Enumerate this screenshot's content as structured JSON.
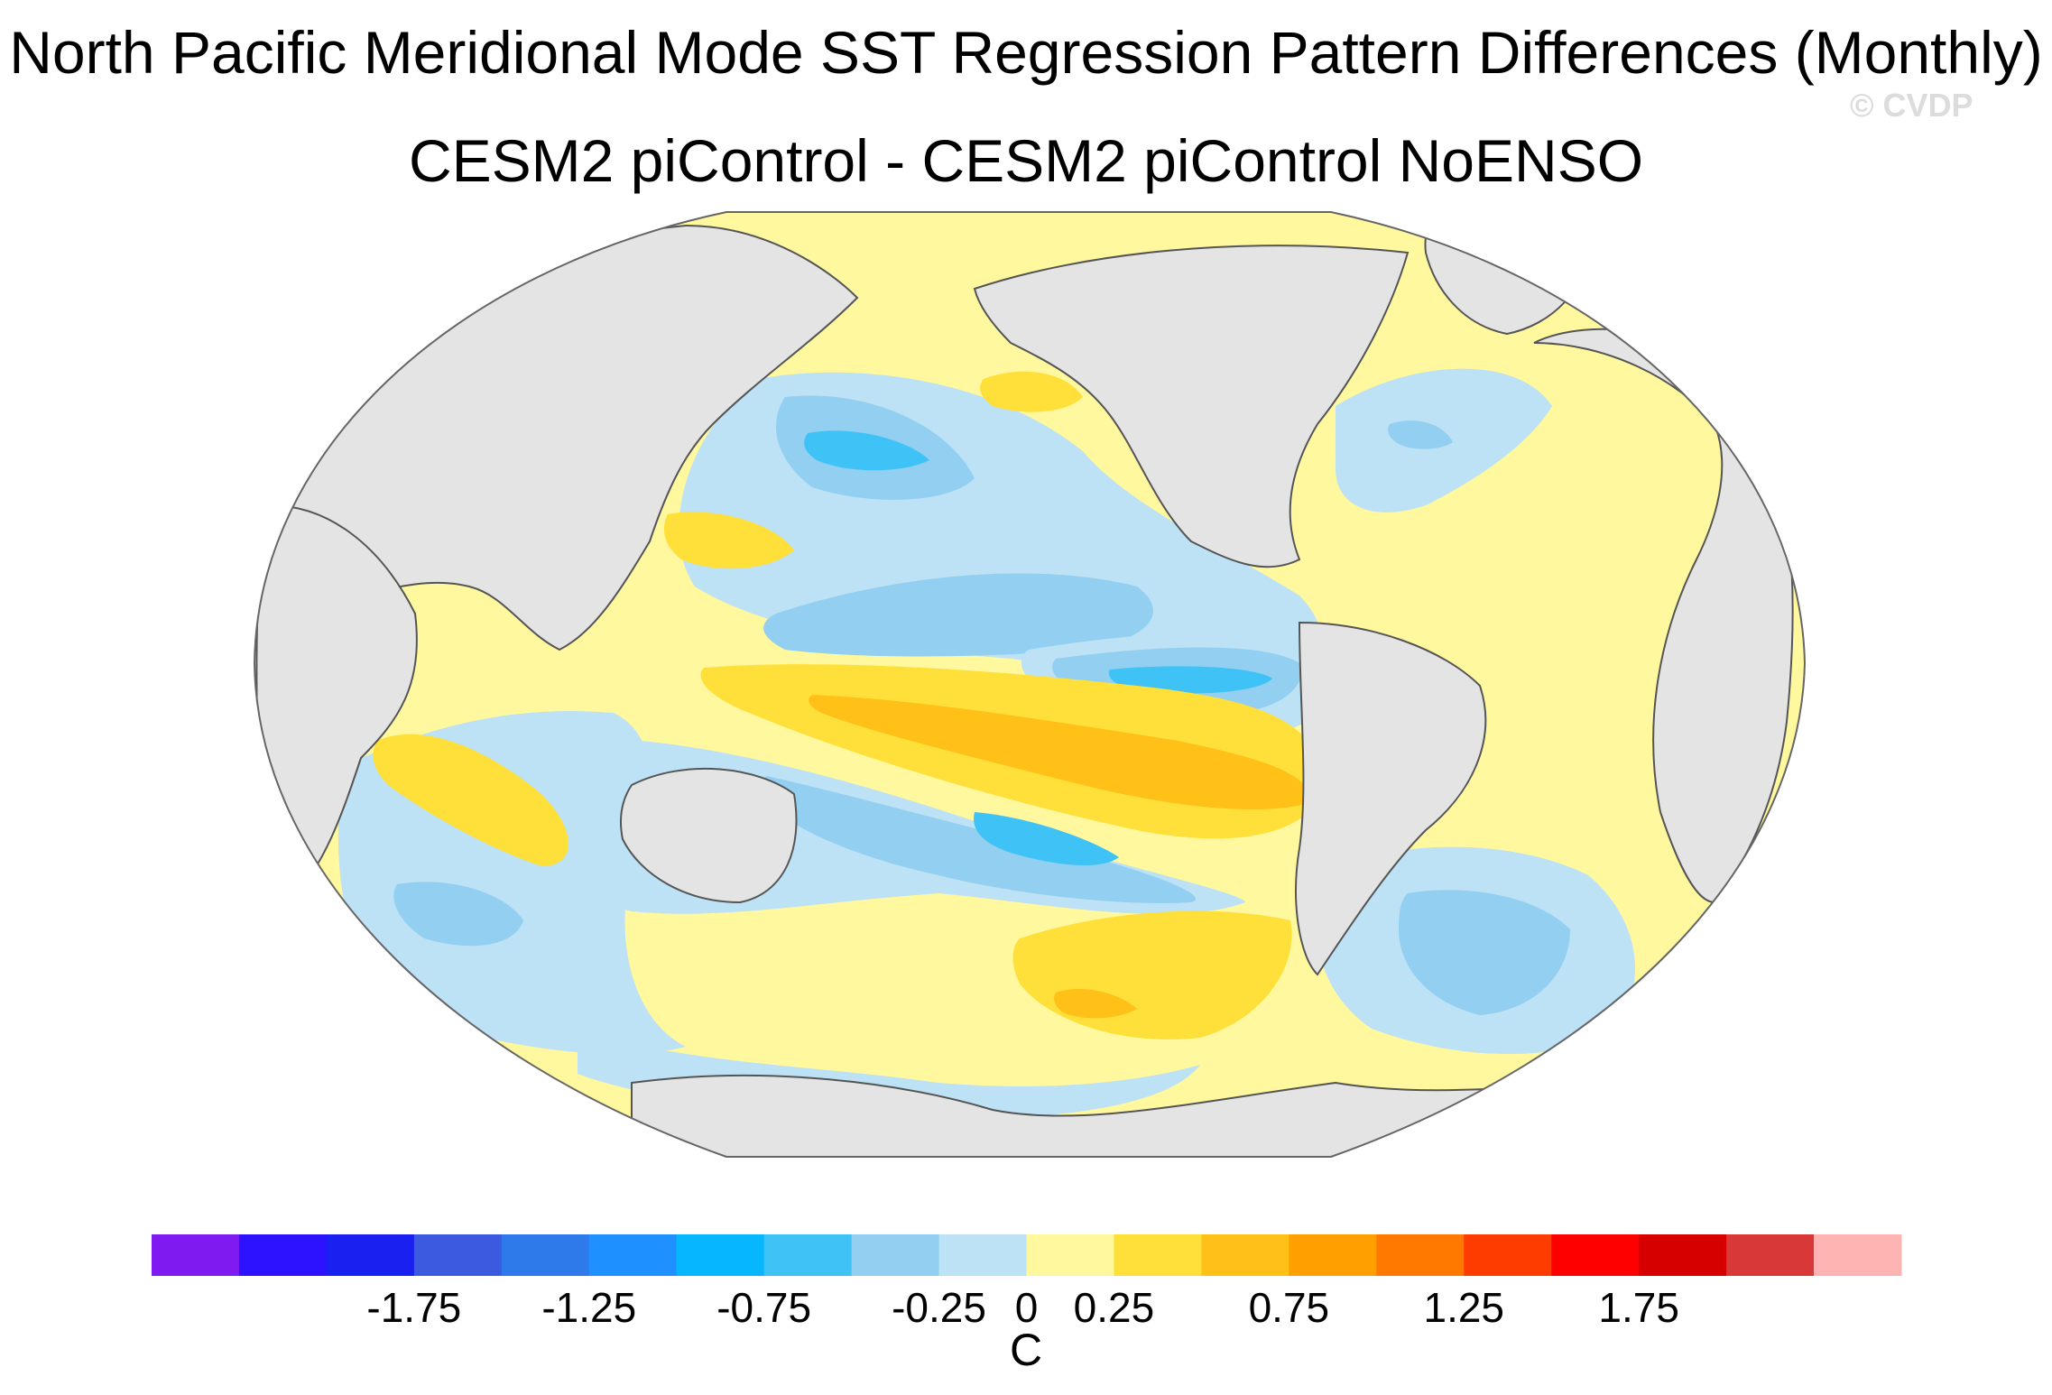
{
  "title": "North Pacific Meridional Mode SST Regression Pattern Differences (Monthly)",
  "subtitle": "CESM2 piControl - CESM2 piControl NoENSO",
  "watermark": "© CVDP",
  "colors": {
    "land": "#e4e4e4",
    "coast": "#555555",
    "ocean_background": "#fff89e"
  },
  "colorbar": {
    "units": "C",
    "colors": [
      "#7f1bf0",
      "#2d12ff",
      "#1a20f0",
      "#3c5ae0",
      "#2f7aeb",
      "#1f90ff",
      "#06b6ff",
      "#3fc2f5",
      "#92cff0",
      "#bde1f5",
      "#fff89e",
      "#ffe03a",
      "#ffc018",
      "#ffa000",
      "#ff7800",
      "#ff3c00",
      "#ff0000",
      "#d60000",
      "#d93838",
      "#ffb4b4"
    ],
    "tick_labels": [
      "-1.75",
      "-1.25",
      "-0.75",
      "-0.25",
      "0",
      "0.25",
      "0.75",
      "1.25",
      "1.75"
    ],
    "tick_values": [
      -1.75,
      -1.25,
      -0.75,
      -0.25,
      0,
      0.25,
      0.75,
      1.25,
      1.75
    ],
    "min": -2.5,
    "max": 2.5
  }
}
